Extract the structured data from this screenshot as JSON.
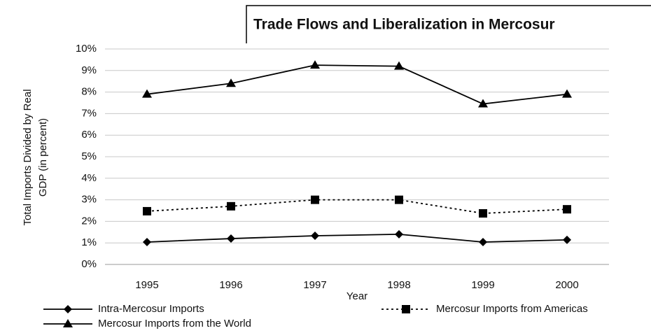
{
  "chart_data": {
    "type": "line",
    "title": "Trade Flows and Liberalization in Mercosur",
    "xlabel": "Year",
    "ylabel": [
      "Total Imports Divided by Real",
      "GDP (in percent)"
    ],
    "categories": [
      "1995",
      "1996",
      "1997",
      "1998",
      "1999",
      "2000"
    ],
    "series": [
      {
        "name": "Intra-Mercosur Imports",
        "color": "#000000",
        "marker": "diamond",
        "dash": "solid",
        "values": [
          1.04,
          1.2,
          1.33,
          1.4,
          1.04,
          1.14
        ]
      },
      {
        "name": "Mercosur Imports from Americas",
        "color": "#000000",
        "marker": "square",
        "dash": "dotted",
        "values": [
          2.47,
          2.7,
          3.0,
          3.0,
          2.37,
          2.56
        ]
      },
      {
        "name": "Mercosur Imports from the World",
        "color": "#000000",
        "marker": "triangle",
        "dash": "solid",
        "values": [
          7.9,
          8.4,
          9.25,
          9.2,
          7.45,
          7.9
        ]
      }
    ],
    "ylim": [
      0,
      10
    ],
    "yticks": [
      {
        "value": 0,
        "label": "0%"
      },
      {
        "value": 1,
        "label": "1%"
      },
      {
        "value": 2,
        "label": "2%"
      },
      {
        "value": 3,
        "label": "3%"
      },
      {
        "value": 4,
        "label": "4%"
      },
      {
        "value": 5,
        "label": "5%"
      },
      {
        "value": 6,
        "label": "6%"
      },
      {
        "value": 7,
        "label": "7%"
      },
      {
        "value": 8,
        "label": "8%"
      },
      {
        "value": 9,
        "label": "9%"
      },
      {
        "value": 10,
        "label": "10%"
      }
    ],
    "grid": true
  }
}
